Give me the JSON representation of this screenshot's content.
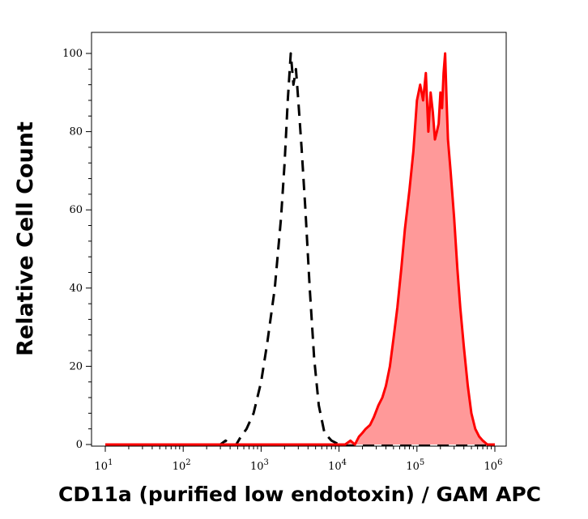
{
  "chart_data": {
    "type": "area",
    "xlabel": "CD11a (purified low endotoxin) / GAM APC",
    "ylabel": "Relative Cell Count",
    "x_scale": "log",
    "xlim": [
      10,
      1000000
    ],
    "ylim": [
      0,
      100
    ],
    "x_ticks": [
      {
        "base": "10",
        "exp": "1",
        "value": 10
      },
      {
        "base": "10",
        "exp": "2",
        "value": 100
      },
      {
        "base": "10",
        "exp": "3",
        "value": 1000
      },
      {
        "base": "10",
        "exp": "4",
        "value": 10000
      },
      {
        "base": "10",
        "exp": "5",
        "value": 100000
      },
      {
        "base": "10",
        "exp": "6",
        "value": 1000000
      }
    ],
    "y_ticks": [
      {
        "label": "0",
        "value": 0
      },
      {
        "label": "20",
        "value": 20
      },
      {
        "label": "40",
        "value": 40
      },
      {
        "label": "60",
        "value": 60
      },
      {
        "label": "80",
        "value": 80
      },
      {
        "label": "100",
        "value": 100
      }
    ],
    "grid": false,
    "legend": "none",
    "series": [
      {
        "style": "dashed",
        "color": "#000000",
        "fill": "none",
        "x": [
          10,
          200,
          300,
          350,
          400,
          480,
          550,
          650,
          800,
          1000,
          1200,
          1500,
          1800,
          2000,
          2200,
          2400,
          2600,
          2800,
          3000,
          3300,
          3700,
          4200,
          4800,
          5500,
          6500,
          8000,
          10000,
          1000000
        ],
        "y": [
          0,
          0,
          0,
          1,
          0,
          0,
          2,
          4,
          8,
          16,
          26,
          40,
          58,
          72,
          88,
          100,
          92,
          96,
          88,
          76,
          60,
          40,
          22,
          10,
          3,
          1,
          0,
          0
        ]
      },
      {
        "style": "solid",
        "color": "#ff0000",
        "fill": "#ff9999",
        "x": [
          10,
          12000,
          14000,
          16000,
          18000,
          20000,
          22000,
          25000,
          28000,
          32000,
          36000,
          40000,
          45000,
          50000,
          56000,
          63000,
          70000,
          80000,
          90000,
          100000,
          110000,
          120000,
          130000,
          140000,
          150000,
          160000,
          170000,
          180000,
          190000,
          200000,
          210000,
          220000,
          230000,
          240000,
          250000,
          270000,
          300000,
          330000,
          360000,
          400000,
          450000,
          500000,
          560000,
          630000,
          700000,
          800000,
          1000000
        ],
        "y": [
          0,
          0,
          1,
          0,
          2,
          3,
          4,
          5,
          7,
          10,
          12,
          15,
          20,
          27,
          35,
          45,
          55,
          65,
          75,
          88,
          92,
          88,
          95,
          80,
          90,
          85,
          78,
          80,
          82,
          90,
          86,
          95,
          100,
          88,
          78,
          70,
          58,
          45,
          35,
          25,
          15,
          8,
          4,
          2,
          1,
          0,
          0
        ]
      }
    ]
  }
}
